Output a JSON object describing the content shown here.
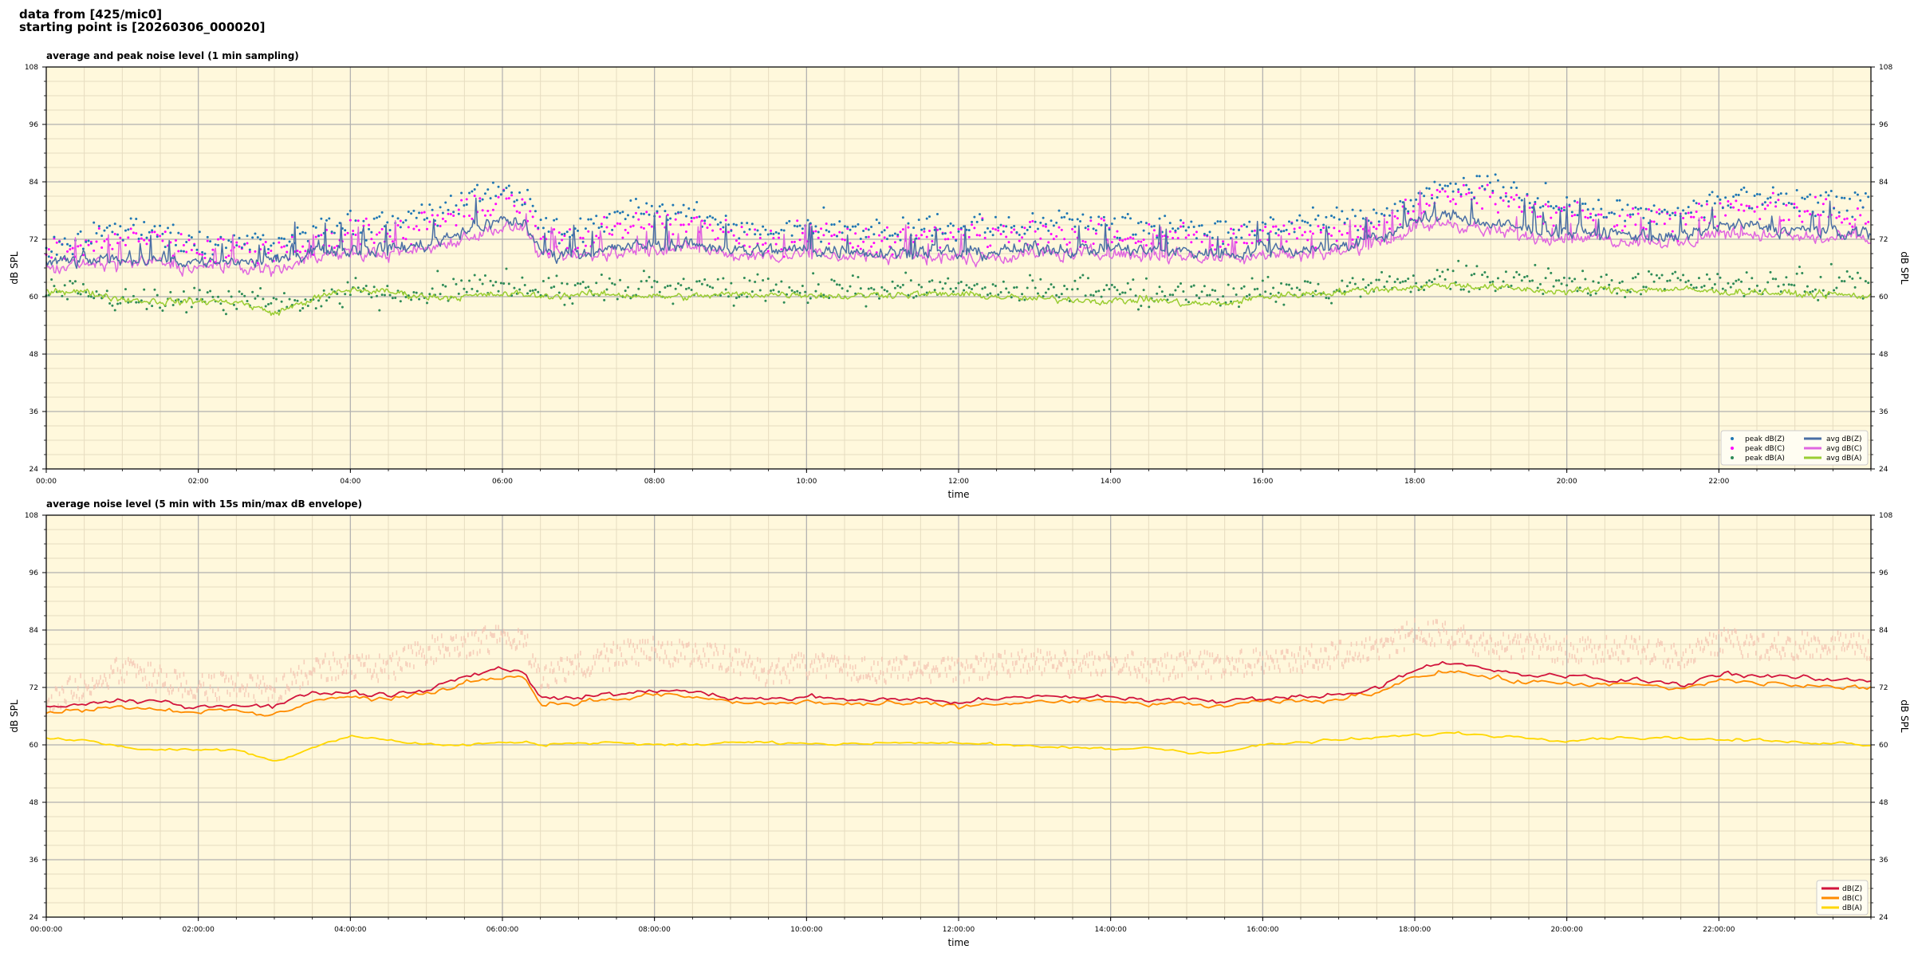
{
  "header": {
    "line1": "data from [425/mic0]",
    "line2": "starting point is [20260306_000020]"
  },
  "colors": {
    "background": "#fff8dc",
    "grid_major": "#b0b0b0",
    "grid_minor": "#e6dcc0",
    "peak_z": "#1f77b4",
    "peak_c": "#ff00ff",
    "peak_a": "#2e8b57",
    "avg_z": "#4a6fa5",
    "avg_c": "#e066e0",
    "avg_a": "#9acd32",
    "z5": "#d2143c",
    "c5": "#ff8c00",
    "a5": "#ffd700",
    "envelope": "#f4c2b0"
  },
  "chart_data": [
    {
      "type": "line",
      "title": "average and peak noise level (1 min sampling)",
      "xlabel": "time",
      "ylabel": "dB SPL",
      "ylim": [
        24,
        108
      ],
      "xlim_hours": [
        0,
        24
      ],
      "yticks": [
        "24",
        "36",
        "48",
        "60",
        "72",
        "84",
        "96",
        "108"
      ],
      "xticks": [
        "00:00",
        "02:00",
        "04:00",
        "06:00",
        "08:00",
        "10:00",
        "12:00",
        "14:00",
        "16:00",
        "18:00",
        "20:00",
        "22:00"
      ],
      "grid": true,
      "legend_position": "lower-right",
      "x_hours": [
        0,
        0.5,
        1,
        1.5,
        2,
        2.5,
        3,
        3.5,
        4,
        4.5,
        5,
        5.5,
        6,
        6.3,
        6.5,
        7,
        7.5,
        8,
        8.5,
        9,
        9.5,
        10,
        10.5,
        11,
        11.5,
        12,
        12.5,
        13,
        13.5,
        14,
        14.5,
        15,
        15.5,
        16,
        16.5,
        17,
        17.5,
        18,
        18.5,
        19,
        19.5,
        20,
        20.5,
        21,
        21.5,
        22,
        22.5,
        23,
        23.5,
        24
      ],
      "series": [
        {
          "name": "peak dB(Z)",
          "kind": "points",
          "values": [
            72,
            74,
            76,
            75,
            72,
            73,
            72,
            75,
            77,
            76,
            79,
            81,
            84,
            83,
            76,
            75,
            78,
            80,
            79,
            77,
            75,
            76,
            76,
            75,
            76,
            76,
            76,
            77,
            76,
            77,
            76,
            76,
            75,
            76,
            77,
            77,
            78,
            82,
            85,
            84,
            82,
            81,
            80,
            80,
            79,
            82,
            82,
            81,
            81,
            81
          ]
        },
        {
          "name": "peak dB(C)",
          "kind": "points",
          "values": [
            71,
            72,
            74,
            73,
            71,
            72,
            70,
            73,
            75,
            74,
            77,
            79,
            82,
            81,
            74,
            73,
            76,
            78,
            77,
            75,
            73,
            74,
            74,
            73,
            74,
            74,
            74,
            75,
            74,
            75,
            74,
            74,
            73,
            74,
            75,
            75,
            76,
            80,
            83,
            82,
            80,
            79,
            78,
            78,
            77,
            80,
            80,
            79,
            79,
            79
          ]
        },
        {
          "name": "peak dB(A)",
          "kind": "points",
          "values": [
            63,
            62,
            61,
            61,
            61,
            61,
            60,
            61,
            63,
            62,
            62,
            63,
            64,
            64,
            63,
            63,
            63,
            64,
            64,
            63,
            63,
            63,
            63,
            63,
            63,
            63,
            63,
            63,
            63,
            63,
            62,
            62,
            62,
            63,
            63,
            63,
            64,
            65,
            66,
            65,
            65,
            64,
            64,
            64,
            64,
            64,
            64,
            64,
            64,
            64
          ]
        },
        {
          "name": "avg dB(Z)",
          "kind": "line",
          "values": [
            67,
            67.5,
            68,
            68,
            67,
            67.5,
            67,
            70,
            70,
            70,
            71,
            74,
            76,
            75.5,
            69,
            69.5,
            70,
            71,
            71,
            70,
            69.5,
            70,
            69.5,
            69.5,
            69.5,
            69,
            69.5,
            70,
            70,
            70,
            69.5,
            69.5,
            69,
            70,
            70,
            70.5,
            72,
            76,
            77,
            75,
            74,
            74,
            73,
            73,
            72,
            75,
            74.5,
            74,
            73.5,
            73.5
          ]
        },
        {
          "name": "avg dB(C)",
          "kind": "line",
          "values": [
            66,
            66.5,
            67,
            67,
            66,
            66.5,
            65.5,
            68.5,
            69,
            69,
            70,
            72.5,
            74.5,
            74,
            68,
            68.5,
            69,
            70,
            70,
            69,
            68.5,
            69,
            68.5,
            68.5,
            68.5,
            68,
            68.5,
            69,
            69,
            69,
            68.5,
            68.5,
            68,
            69,
            69,
            69.5,
            71,
            74.5,
            75.5,
            73.5,
            72.5,
            72.5,
            72,
            72,
            71,
            73.5,
            73,
            72.5,
            72,
            72
          ]
        },
        {
          "name": "avg dB(A)",
          "kind": "line",
          "values": [
            61.5,
            61,
            59.5,
            59,
            59,
            59,
            56.5,
            59.5,
            61.5,
            61,
            60,
            60,
            60.5,
            60.5,
            60,
            60.5,
            60.5,
            60,
            60,
            60.5,
            60.5,
            60.5,
            60,
            60.5,
            60.5,
            60.5,
            60,
            59.5,
            59.5,
            59,
            59.5,
            58.5,
            58.5,
            60,
            60.5,
            61,
            61.5,
            62,
            62.5,
            62,
            61.5,
            61,
            61.5,
            61.5,
            61.5,
            61,
            61,
            60.5,
            60.5,
            60
          ]
        }
      ]
    },
    {
      "type": "line",
      "title": "average noise level (5 min with 15s min/max dB envelope)",
      "xlabel": "time",
      "ylabel": "dB SPL",
      "ylim": [
        24,
        108
      ],
      "xlim_hours": [
        0,
        24
      ],
      "yticks": [
        "24",
        "36",
        "48",
        "60",
        "72",
        "84",
        "96",
        "108"
      ],
      "xticks": [
        "00:00:00",
        "02:00:00",
        "04:00:00",
        "06:00:00",
        "08:00:00",
        "10:00:00",
        "12:00:00",
        "14:00:00",
        "16:00:00",
        "18:00:00",
        "20:00:00",
        "22:00:00"
      ],
      "grid": true,
      "legend_position": "lower-right",
      "x_hours": [
        0,
        0.5,
        1,
        1.5,
        2,
        2.5,
        3,
        3.5,
        4,
        4.5,
        5,
        5.5,
        6,
        6.3,
        6.5,
        7,
        7.5,
        8,
        8.5,
        9,
        9.5,
        10,
        10.5,
        11,
        11.5,
        12,
        12.5,
        13,
        13.5,
        14,
        14.5,
        15,
        15.5,
        16,
        16.5,
        17,
        17.5,
        18,
        18.5,
        19,
        19.5,
        20,
        20.5,
        21,
        21.5,
        22,
        22.5,
        23,
        23.5,
        24
      ],
      "envelope": {
        "min": [
          65,
          65,
          65,
          64.5,
          64,
          64,
          63.5,
          66,
          67,
          66.5,
          67,
          69,
          71,
          70.5,
          66,
          66.5,
          67,
          67,
          67,
          66.5,
          66,
          66.5,
          66,
          66,
          66,
          65.5,
          66,
          66.5,
          66.5,
          66.5,
          66,
          66,
          65.5,
          66.5,
          66.5,
          67,
          68,
          71,
          72,
          70.5,
          69.5,
          69.5,
          69,
          69,
          68,
          70.5,
          70,
          69.5,
          69,
          69
        ],
        "max": [
          72,
          76,
          79,
          77,
          75,
          76,
          74,
          79,
          80,
          79,
          83,
          84,
          86,
          85,
          77,
          80,
          82,
          83,
          82,
          81,
          78,
          80,
          79,
          79,
          79,
          79,
          80,
          81,
          80,
          81,
          79,
          80,
          80,
          81,
          81,
          82,
          83,
          87,
          86,
          84,
          84,
          83,
          83,
          83,
          82,
          85,
          84,
          84,
          84,
          84
        ]
      },
      "series": [
        {
          "name": "dB(Z)",
          "kind": "line",
          "values": [
            68,
            68.5,
            69,
            69,
            68,
            68.5,
            68,
            71,
            71,
            70.5,
            71.5,
            74.5,
            76,
            75.5,
            69.5,
            70,
            70.5,
            71.5,
            71,
            70,
            69.5,
            70,
            69.5,
            69.5,
            69.5,
            69,
            69.5,
            70,
            70,
            70,
            69.5,
            69.5,
            69,
            70,
            70,
            70.5,
            72,
            76,
            77,
            75.5,
            74.5,
            74.5,
            73.5,
            73.5,
            72.5,
            75,
            74.5,
            74,
            73.5,
            73.5
          ]
        },
        {
          "name": "dB(C)",
          "kind": "line",
          "values": [
            67,
            67.5,
            68,
            67.5,
            67,
            67,
            66,
            69.5,
            70,
            69.5,
            70.5,
            73,
            74.5,
            74,
            68.5,
            69,
            69.5,
            70.5,
            70,
            69,
            68.5,
            69,
            68.5,
            68.5,
            68.5,
            68,
            68.5,
            69,
            69,
            69,
            68.5,
            68.5,
            68,
            69,
            69,
            69.5,
            71,
            74.5,
            75.5,
            74,
            73,
            73,
            72.5,
            72.5,
            71.5,
            73.5,
            73,
            72.5,
            72,
            72
          ]
        },
        {
          "name": "dB(A)",
          "kind": "line",
          "values": [
            61.5,
            61,
            59.5,
            59,
            59,
            59,
            56.5,
            59.5,
            62,
            61,
            60,
            60,
            60.5,
            60.5,
            60,
            60.5,
            60.5,
            60,
            60,
            60.5,
            60.5,
            60.5,
            60,
            60.5,
            60.5,
            60.5,
            60,
            59.5,
            59.5,
            59,
            59.5,
            58.5,
            58.5,
            60,
            60.5,
            61,
            61.5,
            62,
            62.5,
            62,
            61.5,
            61,
            61.5,
            61.5,
            61.5,
            61,
            61,
            60.5,
            60.5,
            60
          ]
        }
      ]
    }
  ]
}
